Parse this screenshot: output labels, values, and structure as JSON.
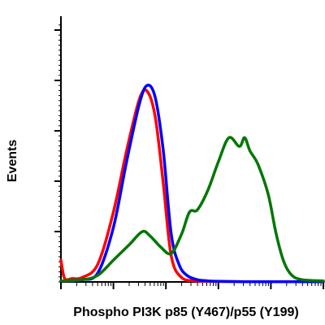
{
  "chart_data": {
    "type": "line",
    "title": "",
    "xlabel": "Phospho PI3K p85 (Y467)/p55 (Y199)",
    "ylabel": "Events",
    "xscale": "log",
    "x_decades": 5,
    "xlim": [
      0,
      5
    ],
    "ylim": [
      0,
      100
    ],
    "grid": false,
    "legend": "none",
    "series": [
      {
        "color": "#ff0000",
        "x": [
          0.0,
          0.05,
          0.1,
          0.2,
          0.4,
          0.7,
          1.0,
          1.25,
          1.5,
          1.65,
          1.8,
          1.95,
          2.1,
          2.3,
          2.6,
          3.0,
          3.5,
          4.0,
          5.0
        ],
        "y": [
          10,
          3,
          1,
          1.5,
          2,
          8,
          32,
          60,
          84,
          87,
          75,
          45,
          12,
          2,
          0.5,
          0.2,
          0.1,
          0.1,
          0.1
        ]
      },
      {
        "color": "#0000ff",
        "x": [
          0.0,
          0.2,
          0.4,
          0.7,
          1.0,
          1.25,
          1.5,
          1.65,
          1.8,
          1.95,
          2.1,
          2.25,
          2.4,
          2.6,
          2.8,
          3.0,
          3.5,
          5.0
        ],
        "y": [
          0.5,
          0.5,
          1,
          4,
          25,
          55,
          82,
          90,
          84,
          60,
          22,
          8,
          3,
          1,
          0.5,
          0.3,
          0.1,
          0.1
        ]
      },
      {
        "color": "#007700",
        "x": [
          0.0,
          0.4,
          0.7,
          1.0,
          1.3,
          1.55,
          1.7,
          1.9,
          2.1,
          2.3,
          2.45,
          2.6,
          2.8,
          3.0,
          3.2,
          3.4,
          3.5,
          3.6,
          3.75,
          3.95,
          4.1,
          4.25,
          4.4,
          4.6,
          5.0
        ],
        "y": [
          0.5,
          1,
          3,
          10,
          17,
          23,
          21,
          16,
          13,
          22,
          32,
          33,
          42,
          55,
          66,
          62,
          66,
          60,
          54,
          40,
          22,
          9,
          3,
          1,
          0.5
        ]
      }
    ]
  }
}
